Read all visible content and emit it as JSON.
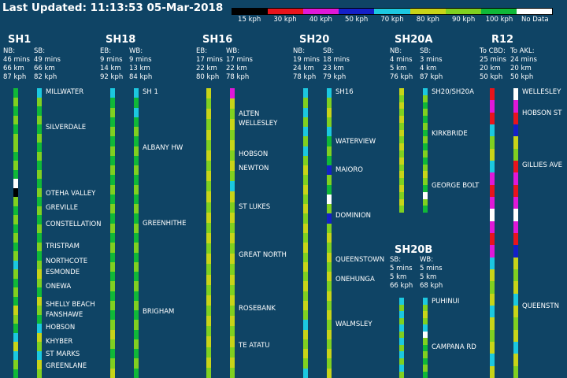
{
  "header": {
    "last_updated": "Last Updated: 11:13:53 05-Mar-2018"
  },
  "legend": [
    {
      "label": "15 kph",
      "color": "#000000"
    },
    {
      "label": "30 kph",
      "color": "#e8141c"
    },
    {
      "label": "40 kph",
      "color": "#e018d8"
    },
    {
      "label": "50 kph",
      "color": "#1420c8"
    },
    {
      "label": "70 kph",
      "color": "#1cc8e0"
    },
    {
      "label": "80 kph",
      "color": "#c8d418"
    },
    {
      "label": "90 kph",
      "color": "#80d020"
    },
    {
      "label": "100 kph",
      "color": "#10b838"
    },
    {
      "label": "No Data",
      "color": "#ffffff"
    }
  ],
  "colors": {
    "background": "#0f4465",
    "c15": "#000000",
    "c30": "#e8141c",
    "c40": "#e018d8",
    "c50": "#1420c8",
    "c70": "#1cc8e0",
    "c80": "#c8d418",
    "c90": "#80d020",
    "c100": "#10b838",
    "nodata": "#ffffff"
  },
  "roads": [
    {
      "id": "sh1",
      "title": "SH1",
      "dirs": [
        {
          "label": "NB:",
          "mins": "46 mins",
          "km": "66 km",
          "kph": "87 kph"
        },
        {
          "label": "SB:",
          "mins": "49 mins",
          "km": "66 km",
          "kph": "82 kph"
        }
      ],
      "locations": [
        "MILLWATER",
        "SILVERDALE",
        "OTEHA VALLEY",
        "GREVILLE",
        "CONSTELLATION",
        "TRISTRAM",
        "NORTHCOTE",
        "ESMONDE",
        "ONEWA",
        "SHELLY BEACH",
        "FANSHAWE",
        "HOBSON",
        "KHYBER",
        "ST MARKS",
        "GREENLANE"
      ]
    },
    {
      "id": "sh18",
      "title": "SH18",
      "dirs": [
        {
          "label": "EB:",
          "mins": "9 mins",
          "km": "14 km",
          "kph": "92 kph"
        },
        {
          "label": "WB:",
          "mins": "9 mins",
          "km": "13 km",
          "kph": "84 kph"
        }
      ],
      "locations": [
        "SH 1",
        "ALBANY HW",
        "GREENHITHE",
        "BRIGHAM"
      ]
    },
    {
      "id": "sh16",
      "title": "SH16",
      "dirs": [
        {
          "label": "EB:",
          "mins": "17 mins",
          "km": "22 km",
          "kph": "80 kph"
        },
        {
          "label": "WB:",
          "mins": "17 mins",
          "km": "22 km",
          "kph": "78 kph"
        }
      ],
      "locations": [
        "ALTEN",
        "WELLESLEY",
        "HOBSON",
        "NEWTON",
        "ST LUKES",
        "GREAT NORTH",
        "ROSEBANK",
        "TE ATATU"
      ]
    },
    {
      "id": "sh20",
      "title": "SH20",
      "dirs": [
        {
          "label": "NB:",
          "mins": "19 mins",
          "km": "24 km",
          "kph": "78 kph"
        },
        {
          "label": "SB:",
          "mins": "18 mins",
          "km": "23 km",
          "kph": "79 kph"
        }
      ],
      "locations": [
        "SH16",
        "WATERVIEW",
        "MAIORO",
        "DOMINION",
        "QUEENSTOWN",
        "ONEHUNGA",
        "WALMSLEY"
      ]
    },
    {
      "id": "sh20a",
      "title": "SH20A",
      "dirs": [
        {
          "label": "NB:",
          "mins": "4 mins",
          "km": "5 km",
          "kph": "76 kph"
        },
        {
          "label": "SB:",
          "mins": "3 mins",
          "km": "4 km",
          "kph": "87 kph"
        }
      ],
      "locations": [
        "SH20/SH20A",
        "KIRKBRIDE",
        "GEORGE BOLT"
      ]
    },
    {
      "id": "sh20b",
      "title": "SH20B",
      "dirs": [
        {
          "label": "SB:",
          "mins": "5 mins",
          "km": "5 km",
          "kph": "66 kph"
        },
        {
          "label": "WB:",
          "mins": "5 mins",
          "km": "5 km",
          "kph": "68 kph"
        }
      ],
      "locations": [
        "PUHINUI",
        "CAMPANA RD"
      ]
    },
    {
      "id": "r12",
      "title": "R12",
      "dirs": [
        {
          "label": "To CBD:",
          "mins": "25 mins",
          "km": "20 km",
          "kph": "50 kph"
        },
        {
          "label": "To AKL:",
          "mins": "24 mins",
          "km": "20 km",
          "kph": "50 kph"
        }
      ],
      "locations": [
        "WELLESLEY",
        "HOBSON ST",
        "GILLIES AVE",
        "QUEENSTN"
      ]
    }
  ],
  "segments": {
    "sh1_nb": [
      "c100",
      "c90",
      "c100",
      "c90",
      "c100",
      "c90",
      "c90",
      "c100",
      "c90",
      "c100",
      "nodata",
      "c15",
      "c90",
      "c100",
      "c90",
      "c100",
      "c90",
      "c100",
      "c90",
      "c70",
      "c90",
      "c100",
      "c90",
      "c100",
      "c80",
      "c90",
      "c100",
      "c70",
      "c80",
      "c70",
      "c90",
      "c100"
    ],
    "sh1_sb": [
      "c70",
      "c90",
      "c100",
      "c90",
      "c100",
      "c90",
      "c100",
      "c90",
      "c100",
      "c90",
      "c100",
      "c90",
      "c100",
      "c90",
      "c100",
      "c90",
      "c100",
      "c90",
      "c100",
      "c90",
      "c80",
      "c90",
      "c100",
      "c80",
      "c90",
      "c100",
      "c70",
      "c80",
      "c90",
      "c70",
      "c80",
      "c90"
    ],
    "sh18_eb": [
      "c70",
      "c100",
      "c90",
      "c100",
      "c90",
      "c100",
      "c90",
      "c100",
      "c90",
      "c100",
      "c90",
      "c100",
      "c90",
      "c100",
      "c90",
      "c100",
      "c90",
      "c100",
      "c90",
      "c100",
      "c90",
      "c100",
      "c90",
      "c100",
      "c90",
      "c80",
      "c90",
      "c100",
      "c90",
      "c80"
    ],
    "sh18_wb": [
      "c70",
      "c100",
      "c70",
      "c100",
      "c90",
      "c100",
      "c90",
      "c100",
      "c90",
      "c100",
      "c90",
      "c100",
      "c90",
      "c100",
      "c90",
      "c100",
      "c90",
      "c100",
      "c90",
      "c100",
      "c90",
      "c100",
      "c90",
      "c100",
      "c90",
      "c100",
      "c90",
      "c100",
      "c90",
      "c100"
    ],
    "sh16_eb": [
      "c80",
      "c90",
      "c80",
      "c90",
      "c80",
      "c90",
      "c80",
      "c90",
      "c80",
      "c90",
      "c80",
      "c90",
      "c80",
      "c90",
      "c80",
      "c90",
      "c80",
      "c90",
      "c80",
      "c90",
      "c80",
      "c90",
      "c80",
      "c90",
      "c80",
      "c90",
      "c80",
      "c90"
    ],
    "sh16_wb": [
      "c40",
      "c80",
      "c90",
      "c80",
      "c90",
      "c80",
      "c90",
      "c80",
      "c90",
      "c70",
      "c80",
      "c90",
      "c80",
      "c90",
      "c80",
      "c90",
      "c80",
      "c90",
      "c80",
      "c90",
      "c80",
      "c90",
      "c80",
      "c90",
      "c80",
      "c90",
      "c80",
      "c90"
    ],
    "sh20_nb": [
      "c70",
      "c90",
      "c70",
      "c90",
      "c70",
      "c90",
      "c70",
      "c90",
      "c80",
      "c90",
      "c80",
      "c90",
      "c80",
      "c90",
      "c80",
      "c90",
      "c80",
      "c90",
      "c80",
      "c90",
      "c80",
      "c90",
      "c80",
      "c90",
      "c70",
      "c80",
      "c90",
      "c80",
      "c90",
      "c70"
    ],
    "sh20_sb": [
      "c70",
      "c90",
      "c80",
      "c90",
      "c70",
      "c100",
      "c90",
      "c100",
      "c50",
      "c90",
      "c100",
      "nodata",
      "c90",
      "c50",
      "c90",
      "c80",
      "c90",
      "c80",
      "c90",
      "c80",
      "c90",
      "c80",
      "c90",
      "c80",
      "c90",
      "c80",
      "c90",
      "c80",
      "c90",
      "c80"
    ],
    "sh20a_nb": [
      "c80",
      "c90",
      "c80",
      "c90",
      "c80",
      "c90",
      "c80",
      "c90",
      "c80",
      "c90",
      "c80",
      "c90",
      "c80",
      "c90",
      "c80",
      "c90",
      "c80",
      "c90"
    ],
    "sh20a_sb": [
      "c70",
      "c90",
      "c100",
      "c90",
      "c100",
      "c90",
      "c100",
      "c90",
      "c100",
      "c90",
      "c100",
      "c90",
      "c80",
      "c90",
      "c100",
      "nodata",
      "c90",
      "c100"
    ],
    "sh20b_sb": [
      "c70",
      "c90",
      "c70",
      "c90",
      "c70",
      "c90",
      "c70",
      "c90",
      "c70",
      "c90",
      "c70",
      "c90"
    ],
    "sh20b_wb": [
      "c70",
      "c90",
      "c80",
      "c90",
      "c70",
      "nodata",
      "c90",
      "c100",
      "c90",
      "c100",
      "c90",
      "c100"
    ],
    "r12_cbd": [
      "c30",
      "c40",
      "c30",
      "c70",
      "c90",
      "c80",
      "c70",
      "c40",
      "c30",
      "c40",
      "nodata",
      "c40",
      "c30",
      "c40",
      "c70",
      "c80",
      "c90",
      "c80",
      "c70",
      "c80",
      "c90",
      "c80",
      "c70",
      "c80"
    ],
    "r12_akl": [
      "nodata",
      "c40",
      "c30",
      "c50",
      "c80",
      "c90",
      "c30",
      "c40",
      "c30",
      "c40",
      "nodata",
      "c40",
      "c30",
      "c50",
      "c80",
      "c90",
      "c80",
      "c70",
      "c80",
      "c90",
      "c80",
      "c70",
      "c80",
      "c90"
    ]
  }
}
